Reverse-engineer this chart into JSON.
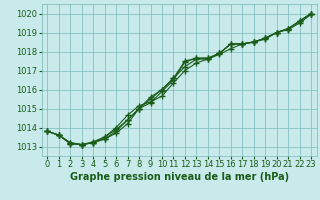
{
  "title": "Graphe pression niveau de la mer (hPa)",
  "x_hours": [
    0,
    1,
    2,
    3,
    4,
    5,
    6,
    7,
    8,
    9,
    10,
    11,
    12,
    13,
    14,
    15,
    16,
    17,
    18,
    19,
    20,
    21,
    22,
    23
  ],
  "line1": [
    1013.8,
    1013.6,
    1013.2,
    1013.1,
    1013.2,
    1013.5,
    1013.9,
    1014.4,
    1015.0,
    1015.5,
    1016.0,
    1016.6,
    1017.2,
    1017.6,
    1017.6,
    1017.9,
    1018.4,
    1018.4,
    1018.5,
    1018.7,
    1019.0,
    1019.2,
    1019.6,
    1020.0
  ],
  "line2": [
    1013.8,
    1013.6,
    1013.2,
    1013.1,
    1013.2,
    1013.4,
    1013.7,
    1014.2,
    1015.0,
    1015.6,
    1016.0,
    1016.6,
    1017.5,
    1017.65,
    1017.65,
    1017.9,
    1018.4,
    1018.4,
    1018.5,
    1018.7,
    1019.0,
    1019.2,
    1019.6,
    1020.0
  ],
  "line3": [
    1013.8,
    1013.6,
    1013.15,
    1013.1,
    1013.2,
    1013.4,
    1013.8,
    1014.4,
    1015.0,
    1015.3,
    1015.9,
    1016.5,
    1017.45,
    1017.65,
    1017.65,
    1017.9,
    1018.4,
    1018.4,
    1018.5,
    1018.7,
    1019.0,
    1019.2,
    1019.6,
    1020.0
  ],
  "line4": [
    1013.8,
    1013.6,
    1013.15,
    1013.1,
    1013.25,
    1013.5,
    1014.0,
    1014.65,
    1015.15,
    1015.35,
    1015.65,
    1016.35,
    1017.0,
    1017.4,
    1017.6,
    1017.85,
    1018.15,
    1018.4,
    1018.5,
    1018.65,
    1019.0,
    1019.15,
    1019.5,
    1019.95
  ],
  "line_color": "#1a5c1a",
  "bg_color": "#c8eaea",
  "grid_color": "#7ab8b8",
  "ylim": [
    1012.5,
    1020.5
  ],
  "yticks": [
    1013,
    1014,
    1015,
    1016,
    1017,
    1018,
    1019,
    1020
  ],
  "marker": "+",
  "marker_size": 4.0,
  "linewidth": 0.8,
  "tick_fontsize": 6,
  "title_fontsize": 7
}
